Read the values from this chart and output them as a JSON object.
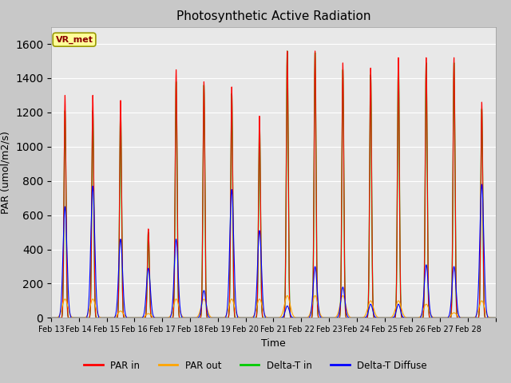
{
  "title": "Photosynthetic Active Radiation",
  "xlabel": "Time",
  "ylabel": "PAR (umol/m2/s)",
  "ylim": [
    0,
    1700
  ],
  "fig_bg_color": "#c8c8c8",
  "plot_bg_color": "#e8e8e8",
  "label_box": "VR_met",
  "label_box_color": "#ffff99",
  "label_box_text_color": "#8B0000",
  "x_tick_labels": [
    "Feb 13",
    "Feb 14",
    "Feb 15",
    "Feb 16",
    "Feb 17",
    "Feb 18",
    "Feb 19",
    "Feb 20",
    "Feb 21",
    "Feb 22",
    "Feb 23",
    "Feb 24",
    "Feb 25",
    "Feb 26",
    "Feb 27",
    "Feb 28"
  ],
  "legend_entries": [
    "PAR in",
    "PAR out",
    "Delta-T in",
    "Delta-T Diffuse"
  ],
  "legend_colors": [
    "#ff0000",
    "#ffa500",
    "#00cc00",
    "#0000ff"
  ],
  "line_colors": {
    "PAR_in": "#ff0000",
    "PAR_out": "#ffa500",
    "Delta_T_in": "#00cc00",
    "Delta_T_Diffuse": "#0000ff"
  },
  "day_peaks_in": [
    1300,
    1300,
    1270,
    520,
    1450,
    1380,
    1350,
    1180,
    1560,
    1560,
    1490,
    1460,
    1520,
    1520,
    1520,
    1260
  ],
  "day_peaks_out": [
    110,
    110,
    40,
    25,
    110,
    110,
    110,
    110,
    130,
    130,
    130,
    100,
    100,
    80,
    30,
    100
  ],
  "day_peaks_Tin": [
    1210,
    1210,
    1200,
    500,
    1380,
    1360,
    1310,
    1130,
    1560,
    1550,
    1450,
    1420,
    1500,
    1490,
    1490,
    1220
  ],
  "day_peaks_Tdiff": [
    650,
    770,
    460,
    290,
    460,
    160,
    750,
    510,
    70,
    300,
    180,
    80,
    80,
    310,
    300,
    780
  ]
}
